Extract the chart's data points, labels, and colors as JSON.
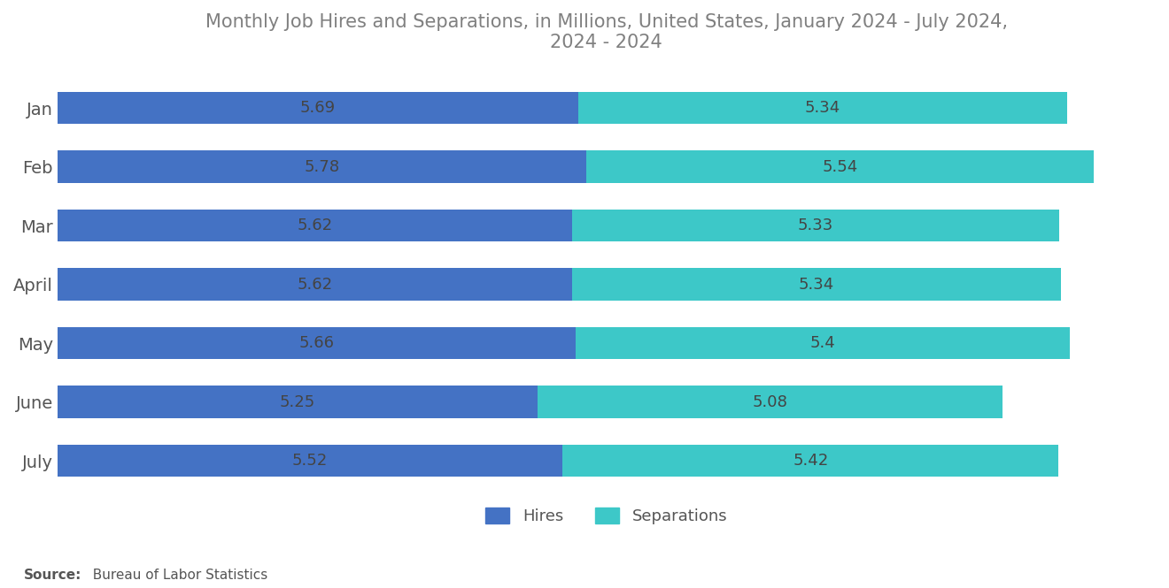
{
  "title": "Monthly Job Hires and Separations, in Millions, United States, January 2024 - July 2024,\n2024 - 2024",
  "months": [
    "Jan",
    "Feb",
    "Mar",
    "April",
    "May",
    "June",
    "July"
  ],
  "hires": [
    5.69,
    5.78,
    5.62,
    5.62,
    5.66,
    5.25,
    5.52
  ],
  "separations": [
    5.34,
    5.54,
    5.33,
    5.34,
    5.4,
    5.08,
    5.42
  ],
  "hires_color": "#4472C4",
  "separations_color": "#3DC8C8",
  "bar_height": 0.55,
  "title_color": "#808080",
  "label_color": "#555555",
  "value_color": "#444444",
  "source_bold": "Source:",
  "source_rest": "  Bureau of Labor Statistics",
  "background_color": "#FFFFFF",
  "title_fontsize": 15,
  "axis_fontsize": 14,
  "value_fontsize": 13,
  "legend_fontsize": 13,
  "xlim_max": 12.0
}
